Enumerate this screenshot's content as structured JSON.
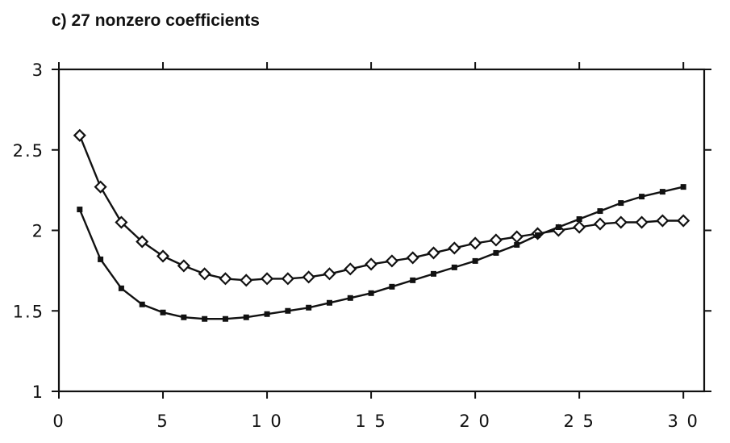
{
  "chart_data": {
    "type": "line",
    "title": "c) 27 nonzero coefficients",
    "xlabel": "",
    "ylabel": "",
    "xlim": [
      0,
      31
    ],
    "ylim": [
      1,
      3
    ],
    "x_ticks": [
      0,
      5,
      10,
      15,
      20,
      25,
      30
    ],
    "x_tick_labels": [
      "0",
      "5",
      "1 0",
      "1 5",
      "2 0",
      "2 5",
      "3 0"
    ],
    "y_ticks": [
      1,
      1.5,
      2,
      2.5,
      3
    ],
    "y_tick_labels": [
      "1",
      "1.5",
      "2",
      "2.5",
      "3"
    ],
    "grid": false,
    "legend": "none",
    "x": [
      1,
      2,
      3,
      4,
      5,
      6,
      7,
      8,
      9,
      10,
      11,
      12,
      13,
      14,
      15,
      16,
      17,
      18,
      19,
      20,
      21,
      22,
      23,
      24,
      25,
      26,
      27,
      28,
      29,
      30
    ],
    "series": [
      {
        "marker": "diamond-open",
        "color": "#111111",
        "values": [
          2.59,
          2.27,
          2.05,
          1.93,
          1.84,
          1.78,
          1.73,
          1.7,
          1.69,
          1.7,
          1.7,
          1.71,
          1.73,
          1.76,
          1.79,
          1.81,
          1.83,
          1.86,
          1.89,
          1.92,
          1.94,
          1.96,
          1.98,
          2.0,
          2.02,
          2.04,
          2.05,
          2.05,
          2.06,
          2.06
        ]
      },
      {
        "marker": "square-filled",
        "color": "#111111",
        "values": [
          2.13,
          1.82,
          1.64,
          1.54,
          1.49,
          1.46,
          1.45,
          1.45,
          1.46,
          1.48,
          1.5,
          1.52,
          1.55,
          1.58,
          1.61,
          1.65,
          1.69,
          1.73,
          1.77,
          1.81,
          1.86,
          1.91,
          1.97,
          2.02,
          2.07,
          2.12,
          2.17,
          2.21,
          2.24,
          2.27
        ]
      }
    ]
  }
}
